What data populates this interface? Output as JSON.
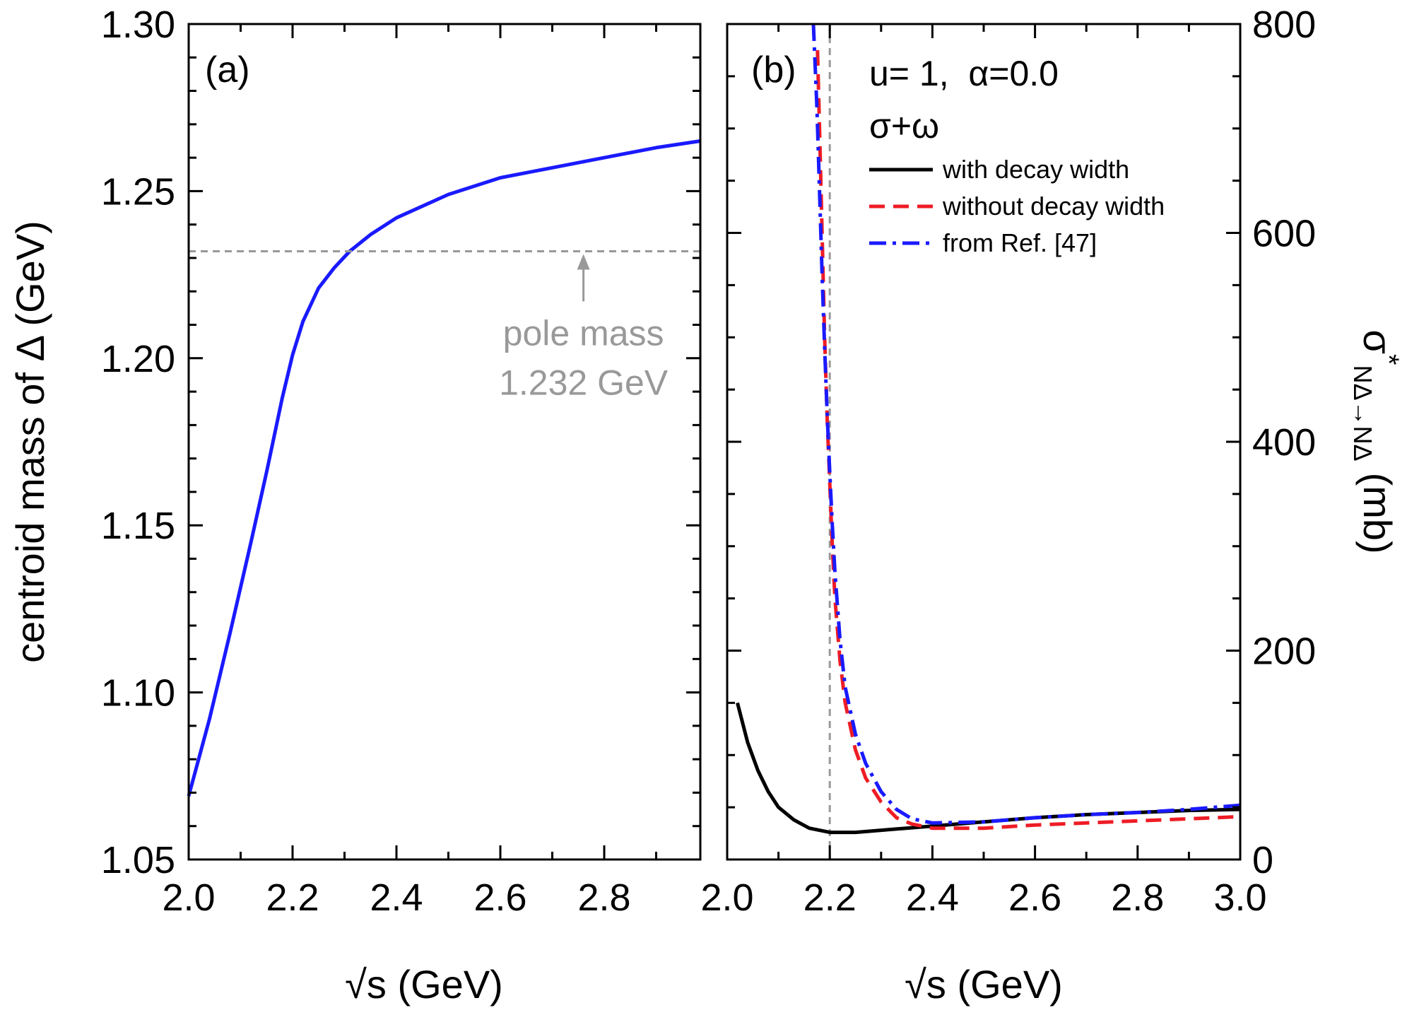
{
  "colors": {
    "blue": "#1a1aff",
    "red": "#ee1c25",
    "black": "#000000",
    "gray": "#999999"
  },
  "chart_data": [
    {
      "type": "line",
      "panel_label": "(a)",
      "xlabel": "√s (GeV)",
      "ylabel": "centroid mass of Δ (GeV)",
      "xlim": [
        2.0,
        2.985
      ],
      "ylim": [
        1.05,
        1.3
      ],
      "xticks": [
        "2.0",
        "2.2",
        "2.4",
        "2.6",
        "2.8"
      ],
      "yticks": [
        "1.05",
        "1.10",
        "1.15",
        "1.20",
        "1.25",
        "1.30"
      ],
      "grid": false,
      "series": [
        {
          "color": "#1a1aff",
          "style": "solid",
          "points": [
            [
              2.0,
              1.069
            ],
            [
              2.04,
              1.092
            ],
            [
              2.08,
              1.118
            ],
            [
              2.12,
              1.145
            ],
            [
              2.15,
              1.166
            ],
            [
              2.18,
              1.188
            ],
            [
              2.2,
              1.201
            ],
            [
              2.22,
              1.211
            ],
            [
              2.25,
              1.221
            ],
            [
              2.28,
              1.227
            ],
            [
              2.31,
              1.232
            ],
            [
              2.35,
              1.237
            ],
            [
              2.4,
              1.242
            ],
            [
              2.5,
              1.249
            ],
            [
              2.6,
              1.254
            ],
            [
              2.7,
              1.257
            ],
            [
              2.8,
              1.26
            ],
            [
              2.9,
              1.263
            ],
            [
              2.985,
              1.265
            ]
          ]
        }
      ],
      "reference_line": {
        "y": 1.232,
        "style": "dashed",
        "color": "#999999"
      },
      "annotation": {
        "line1": "pole mass",
        "line2": "1.232 GeV",
        "arrow_x": 2.76,
        "arrow_from_y": 1.217,
        "arrow_to_y": 1.232
      }
    },
    {
      "type": "line",
      "panel_label": "(b)",
      "xlabel": "√s (GeV)",
      "ylabel": "σ*NΔ→NΔ (mb)",
      "ylabel_parts": {
        "sigma": "σ",
        "star": "*",
        "subscript": "NΔ→NΔ",
        "unit": "(mb)"
      },
      "y_axis_side": "right",
      "xlim": [
        2.0,
        3.0
      ],
      "ylim": [
        0,
        800
      ],
      "xticks": [
        "2.0",
        "2.2",
        "2.4",
        "2.6",
        "2.8",
        "3.0"
      ],
      "yticks": [
        "0",
        "200",
        "400",
        "600",
        "800"
      ],
      "grid": false,
      "info_line1": "u= 1,  α=0.0",
      "info_line2": "σ+ω",
      "legend_position": "top-right",
      "vertical_reference_line": {
        "x": 2.2,
        "style": "dashed",
        "color": "#999999"
      },
      "series": [
        {
          "name": "with decay width",
          "color": "#000000",
          "style": "solid",
          "points": [
            [
              2.02,
              150
            ],
            [
              2.04,
              112
            ],
            [
              2.06,
              85
            ],
            [
              2.08,
              65
            ],
            [
              2.1,
              50
            ],
            [
              2.13,
              38
            ],
            [
              2.16,
              30
            ],
            [
              2.2,
              26
            ],
            [
              2.25,
              26
            ],
            [
              2.3,
              28
            ],
            [
              2.4,
              32
            ],
            [
              2.5,
              36
            ],
            [
              2.6,
              40
            ],
            [
              2.7,
              43
            ],
            [
              2.8,
              45
            ],
            [
              2.9,
              47
            ],
            [
              3.0,
              48
            ]
          ]
        },
        {
          "name": "without decay width",
          "color": "#ee1c25",
          "style": "dashed",
          "points": [
            [
              2.176,
              775
            ],
            [
              2.18,
              700
            ],
            [
              2.185,
              600
            ],
            [
              2.19,
              500
            ],
            [
              2.195,
              420
            ],
            [
              2.2,
              360
            ],
            [
              2.205,
              300
            ],
            [
              2.21,
              250
            ],
            [
              2.22,
              190
            ],
            [
              2.23,
              150
            ],
            [
              2.25,
              105
            ],
            [
              2.27,
              78
            ],
            [
              2.3,
              55
            ],
            [
              2.33,
              40
            ],
            [
              2.36,
              34
            ],
            [
              2.4,
              30
            ],
            [
              2.5,
              30
            ],
            [
              2.6,
              33
            ],
            [
              2.7,
              35
            ],
            [
              2.8,
              37
            ],
            [
              2.9,
              39
            ],
            [
              3.0,
              41
            ]
          ]
        },
        {
          "name": "from Ref. [47]",
          "color": "#1a1aff",
          "style": "dashdot",
          "points": [
            [
              2.168,
              800
            ],
            [
              2.175,
              720
            ],
            [
              2.18,
              640
            ],
            [
              2.185,
              560
            ],
            [
              2.19,
              490
            ],
            [
              2.195,
              425
            ],
            [
              2.2,
              370
            ],
            [
              2.205,
              320
            ],
            [
              2.21,
              275
            ],
            [
              2.22,
              210
            ],
            [
              2.23,
              165
            ],
            [
              2.25,
              120
            ],
            [
              2.27,
              92
            ],
            [
              2.3,
              65
            ],
            [
              2.33,
              48
            ],
            [
              2.36,
              39
            ],
            [
              2.4,
              35
            ],
            [
              2.5,
              36
            ],
            [
              2.6,
              40
            ],
            [
              2.7,
              43
            ],
            [
              2.8,
              45
            ],
            [
              2.9,
              48
            ],
            [
              3.0,
              52
            ]
          ]
        }
      ]
    }
  ]
}
